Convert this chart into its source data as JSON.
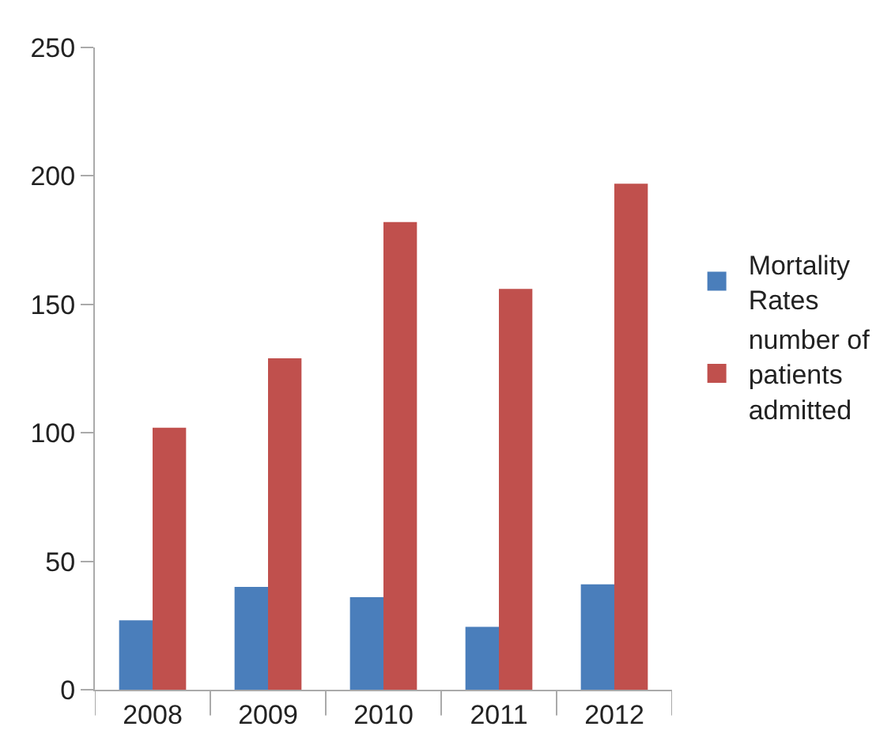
{
  "chart_data": {
    "type": "bar",
    "categories": [
      "2008",
      "2009",
      "2010",
      "2011",
      "2012"
    ],
    "series": [
      {
        "name": "Mortality Rates",
        "color": "#4a7ebb",
        "values": [
          27,
          40,
          36,
          24.5,
          41
        ]
      },
      {
        "name": "number of patients admitted",
        "color": "#c0504d",
        "values": [
          102,
          129,
          182,
          156,
          197
        ]
      }
    ],
    "ylim": [
      0,
      250
    ],
    "yticks": [
      0,
      50,
      100,
      150,
      200,
      250
    ],
    "legend": "right"
  }
}
